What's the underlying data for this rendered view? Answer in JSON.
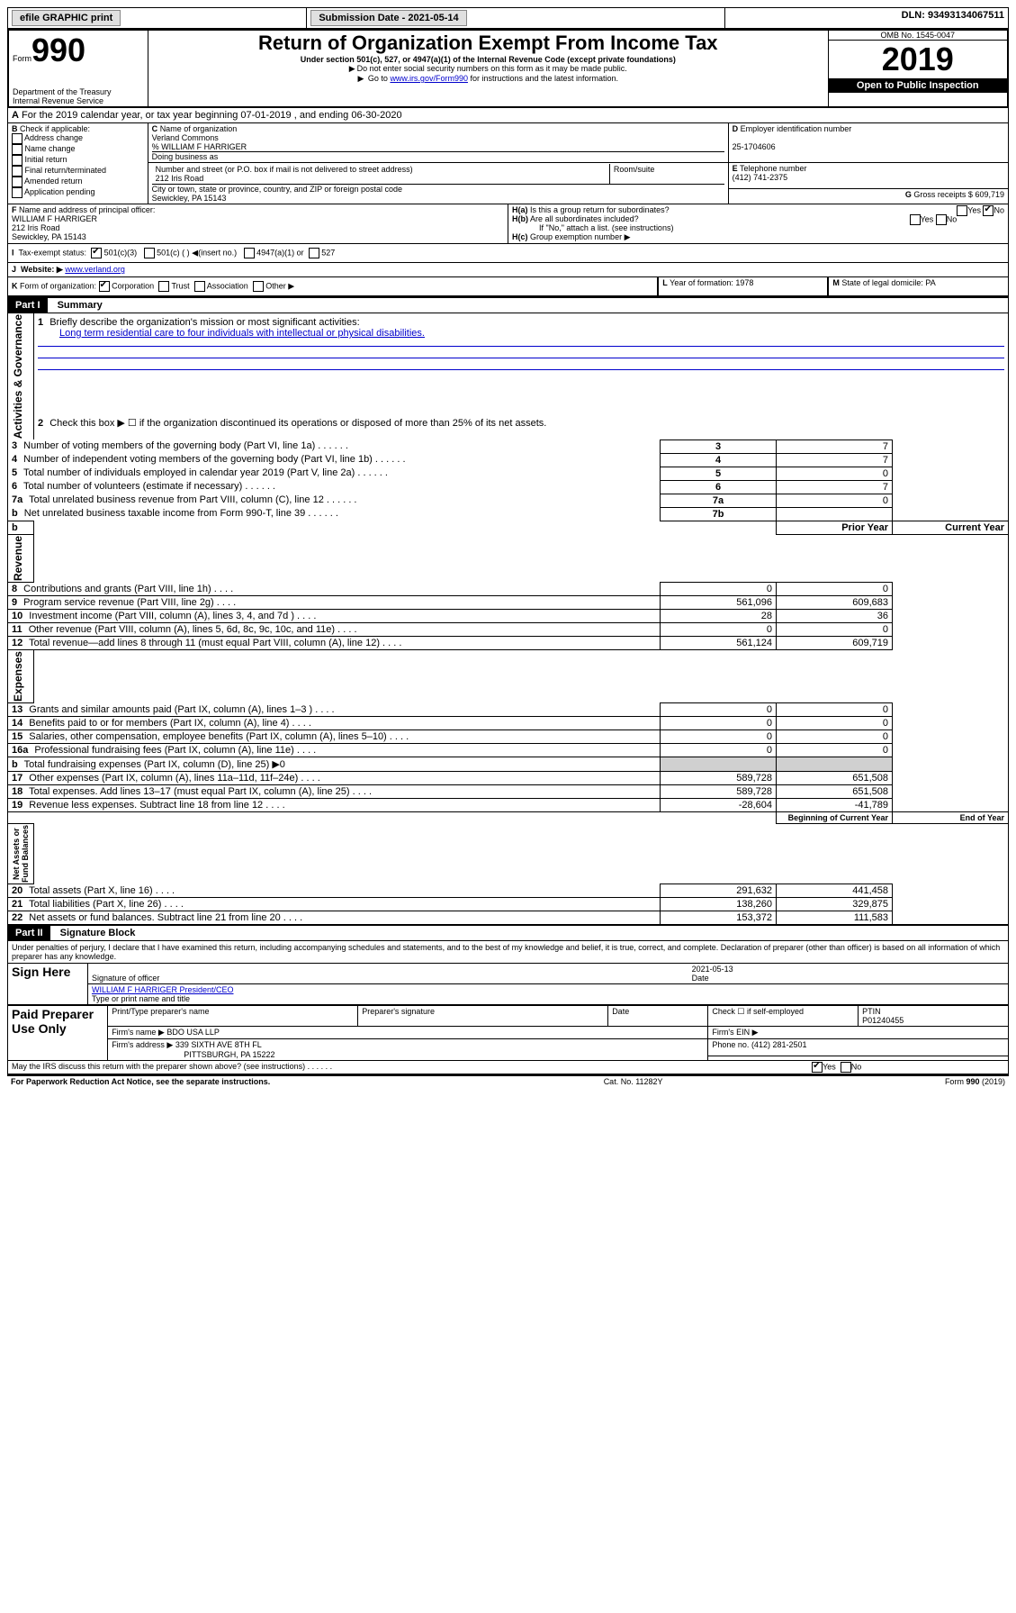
{
  "top": {
    "efile": "efile GRAPHIC print",
    "submission": "Submission Date - 2021-05-14",
    "dln": "DLN: 93493134067511"
  },
  "header": {
    "form_prefix": "Form",
    "form_number": "990",
    "title": "Return of Organization Exempt From Income Tax",
    "subtitle": "Under section 501(c), 527, or 4947(a)(1) of the Internal Revenue Code (except private foundations)",
    "warn1": "Do not enter social security numbers on this form as it may be made public.",
    "warn2_pre": "Go to ",
    "warn2_link": "www.irs.gov/Form990",
    "warn2_post": " for instructions and the latest information.",
    "dept": "Department of the Treasury\nInternal Revenue Service",
    "omb": "OMB No. 1545-0047",
    "year": "2019",
    "open": "Open to Public Inspection"
  },
  "A": {
    "line": "For the 2019 calendar year, or tax year beginning 07-01-2019   , and ending 06-30-2020"
  },
  "B": {
    "label": "Check if applicable:",
    "opts": [
      "Address change",
      "Name change",
      "Initial return",
      "Final return/terminated",
      "Amended return",
      "Application pending"
    ]
  },
  "C": {
    "label": "Name of organization",
    "org": "Verland Commons",
    "care": "% WILLIAM F HARRIGER",
    "dba_label": "Doing business as",
    "addr_label": "Number and street (or P.O. box if mail is not delivered to street address)",
    "room_label": "Room/suite",
    "addr": "212 Iris Road",
    "city_label": "City or town, state or province, country, and ZIP or foreign postal code",
    "city": "Sewickley, PA  15143"
  },
  "D": {
    "label": "Employer identification number",
    "val": "25-1704606"
  },
  "E": {
    "label": "Telephone number",
    "val": "(412) 741-2375"
  },
  "G": {
    "label": "Gross receipts $",
    "val": "609,719"
  },
  "F": {
    "label": "Name and address of principal officer:",
    "name": "WILLIAM F HARRIGER",
    "addr1": "212 Iris Road",
    "addr2": "Sewickley, PA  15143"
  },
  "H": {
    "a": "Is this a group return for subordinates?",
    "b": "Are all subordinates included?",
    "b_note": "If \"No,\" attach a list. (see instructions)",
    "c": "Group exemption number ▶"
  },
  "I": {
    "label": "Tax-exempt status:",
    "opts": [
      "501(c)(3)",
      "501(c) (   ) ◀(insert no.)",
      "4947(a)(1) or",
      "527"
    ]
  },
  "J": {
    "label": "Website: ▶",
    "val": "www.verland.org"
  },
  "K": {
    "label": "Form of organization:",
    "opts": [
      "Corporation",
      "Trust",
      "Association",
      "Other ▶"
    ]
  },
  "L": {
    "label": "Year of formation:",
    "val": "1978"
  },
  "M": {
    "label": "State of legal domicile:",
    "val": "PA"
  },
  "part1": {
    "title": "Part I",
    "name": "Summary",
    "q1": "Briefly describe the organization's mission or most significant activities:",
    "mission": "Long term residential care to four individuals with intellectual or physical disabilities.",
    "q2": "Check this box ▶ ☐  if the organization discontinued its operations or disposed of more than 25% of its net assets.",
    "rows_gov": [
      {
        "n": "3",
        "t": "Number of voting members of the governing body (Part VI, line 1a)",
        "c": "3",
        "v": "7"
      },
      {
        "n": "4",
        "t": "Number of independent voting members of the governing body (Part VI, line 1b)",
        "c": "4",
        "v": "7"
      },
      {
        "n": "5",
        "t": "Total number of individuals employed in calendar year 2019 (Part V, line 2a)",
        "c": "5",
        "v": "0"
      },
      {
        "n": "6",
        "t": "Total number of volunteers (estimate if necessary)",
        "c": "6",
        "v": "7"
      },
      {
        "n": "7a",
        "t": "Total unrelated business revenue from Part VIII, column (C), line 12",
        "c": "7a",
        "v": "0"
      },
      {
        "n": "b",
        "t": "Net unrelated business taxable income from Form 990-T, line 39",
        "c": "7b",
        "v": ""
      }
    ],
    "py": "Prior Year",
    "cy": "Current Year",
    "rows_rev": [
      {
        "n": "8",
        "t": "Contributions and grants (Part VIII, line 1h)",
        "p": "0",
        "c": "0"
      },
      {
        "n": "9",
        "t": "Program service revenue (Part VIII, line 2g)",
        "p": "561,096",
        "c": "609,683"
      },
      {
        "n": "10",
        "t": "Investment income (Part VIII, column (A), lines 3, 4, and 7d )",
        "p": "28",
        "c": "36"
      },
      {
        "n": "11",
        "t": "Other revenue (Part VIII, column (A), lines 5, 6d, 8c, 9c, 10c, and 11e)",
        "p": "0",
        "c": "0"
      },
      {
        "n": "12",
        "t": "Total revenue—add lines 8 through 11 (must equal Part VIII, column (A), line 12)",
        "p": "561,124",
        "c": "609,719"
      }
    ],
    "rows_exp": [
      {
        "n": "13",
        "t": "Grants and similar amounts paid (Part IX, column (A), lines 1–3 )",
        "p": "0",
        "c": "0"
      },
      {
        "n": "14",
        "t": "Benefits paid to or for members (Part IX, column (A), line 4)",
        "p": "0",
        "c": "0"
      },
      {
        "n": "15",
        "t": "Salaries, other compensation, employee benefits (Part IX, column (A), lines 5–10)",
        "p": "0",
        "c": "0"
      },
      {
        "n": "16a",
        "t": "Professional fundraising fees (Part IX, column (A), line 11e)",
        "p": "0",
        "c": "0"
      },
      {
        "n": "b",
        "t": "Total fundraising expenses (Part IX, column (D), line 25) ▶0",
        "p": "",
        "c": ""
      },
      {
        "n": "17",
        "t": "Other expenses (Part IX, column (A), lines 11a–11d, 11f–24e)",
        "p": "589,728",
        "c": "651,508"
      },
      {
        "n": "18",
        "t": "Total expenses. Add lines 13–17 (must equal Part IX, column (A), line 25)",
        "p": "589,728",
        "c": "651,508"
      },
      {
        "n": "19",
        "t": "Revenue less expenses. Subtract line 18 from line 12",
        "p": "-28,604",
        "c": "-41,789"
      }
    ],
    "by": "Beginning of Current Year",
    "ey": "End of Year",
    "rows_net": [
      {
        "n": "20",
        "t": "Total assets (Part X, line 16)",
        "p": "291,632",
        "c": "441,458"
      },
      {
        "n": "21",
        "t": "Total liabilities (Part X, line 26)",
        "p": "138,260",
        "c": "329,875"
      },
      {
        "n": "22",
        "t": "Net assets or fund balances. Subtract line 21 from line 20",
        "p": "153,372",
        "c": "111,583"
      }
    ]
  },
  "part2": {
    "title": "Part II",
    "name": "Signature Block",
    "perjury": "Under penalties of perjury, I declare that I have examined this return, including accompanying schedules and statements, and to the best of my knowledge and belief, it is true, correct, and complete. Declaration of preparer (other than officer) is based on all information of which preparer has any knowledge.",
    "sign_label": "Sign Here",
    "sig_date": "2021-05-13",
    "sig_officer": "Signature of officer",
    "date_label": "Date",
    "officer_name": "WILLIAM F HARRIGER  President/CEO",
    "type_label": "Type or print name and title",
    "paid_label": "Paid Preparer Use Only",
    "prep_name_label": "Print/Type preparer's name",
    "prep_sig_label": "Preparer's signature",
    "prep_date_label": "Date",
    "self_emp": "Check ☐ if self-employed",
    "ptin_label": "PTIN",
    "ptin": "P01240455",
    "firm_name_label": "Firm's name    ▶",
    "firm_name": "BDO USA LLP",
    "firm_ein_label": "Firm's EIN ▶",
    "firm_addr_label": "Firm's address ▶",
    "firm_addr": "339 SIXTH AVE 8TH FL",
    "firm_city": "PITTSBURGH, PA  15222",
    "firm_phone_label": "Phone no.",
    "firm_phone": "(412) 281-2501",
    "discuss": "May the IRS discuss this return with the preparer shown above? (see instructions)",
    "paperwork": "For Paperwork Reduction Act Notice, see the separate instructions.",
    "cat": "Cat. No. 11282Y",
    "form_foot": "Form 990 (2019)"
  }
}
